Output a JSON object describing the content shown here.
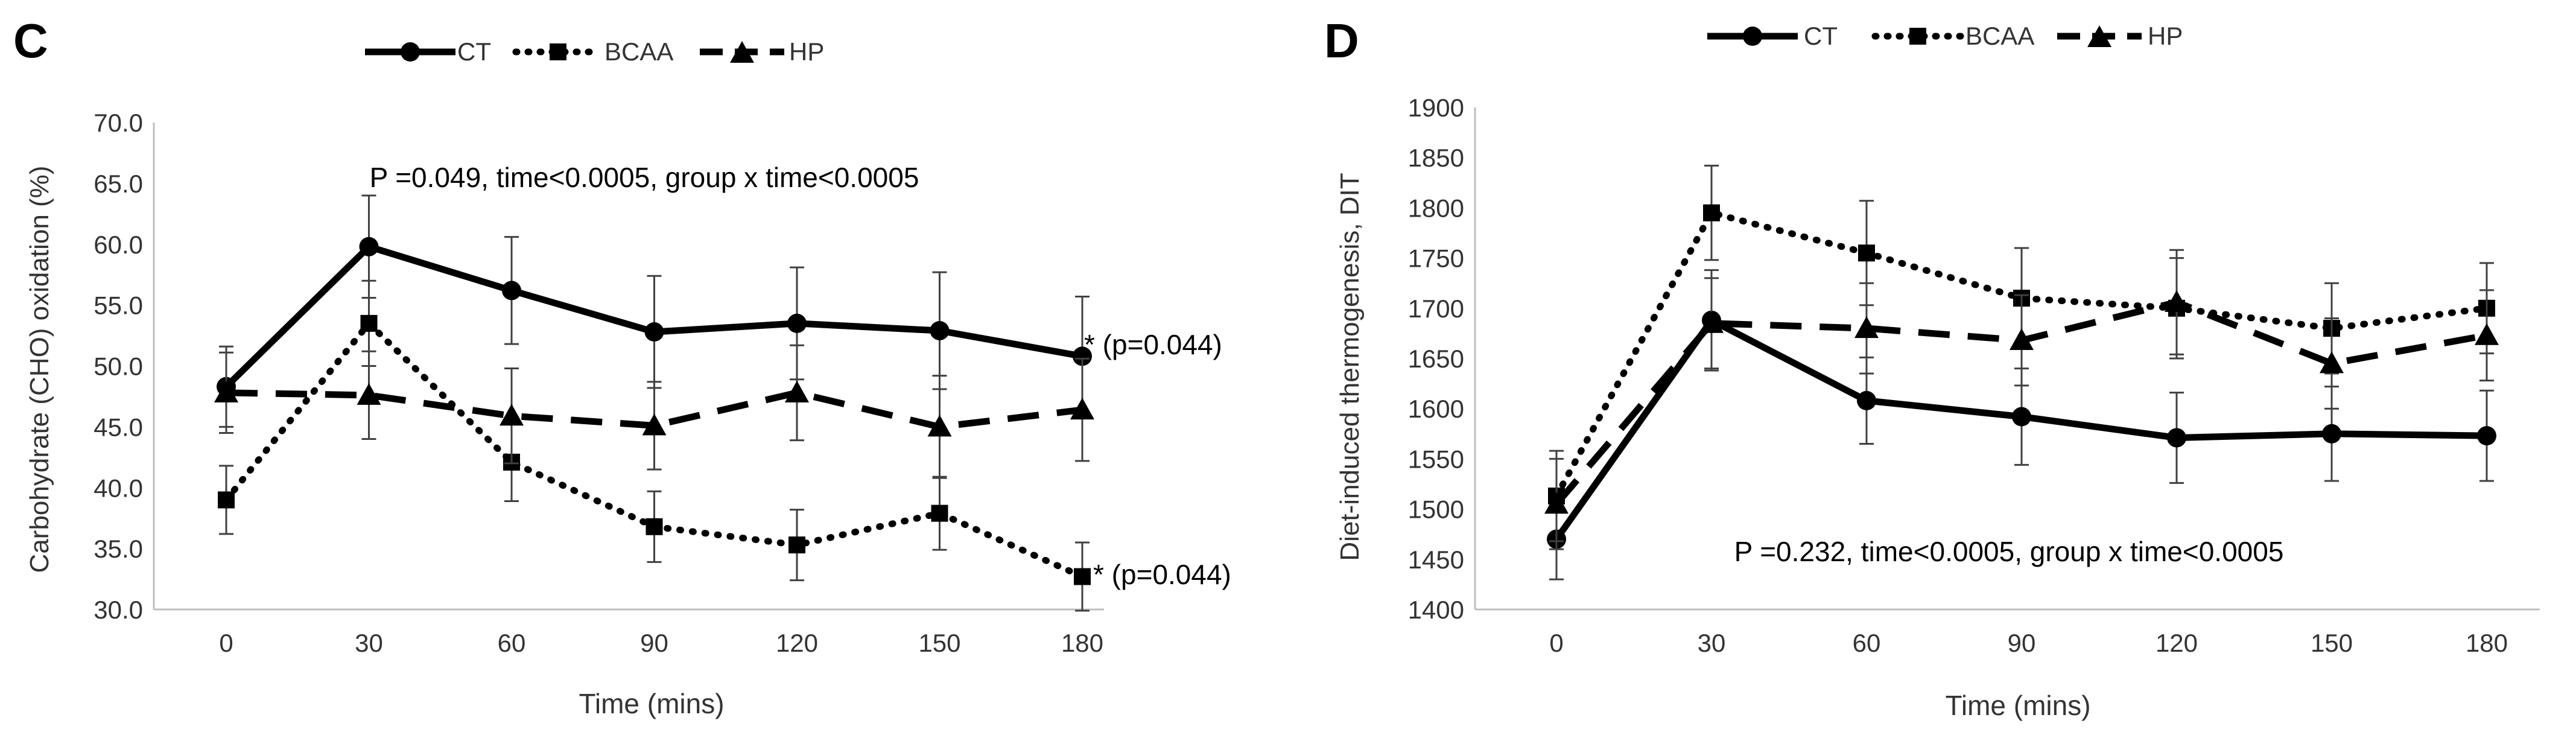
{
  "chart_data": [
    {
      "type": "line",
      "panel_label": "C",
      "title": "",
      "xlabel": "Time (mins)",
      "ylabel": "Carbohydrate (CHO) oxidation (%)",
      "categories": [
        "0",
        "30",
        "60",
        "90",
        "120",
        "150",
        "180"
      ],
      "ylim": [
        30.0,
        70.0
      ],
      "yticks": [
        "30.0",
        "35.0",
        "40.0",
        "45.0",
        "50.0",
        "55.0",
        "60.0",
        "65.0",
        "70.0"
      ],
      "ytick_values": [
        30,
        35,
        40,
        45,
        50,
        55,
        60,
        65,
        70
      ],
      "grid": false,
      "legend": "top",
      "legend_labels": [
        "CT",
        "BCAA",
        "HP"
      ],
      "series": [
        {
          "name": "CT",
          "style": "solid",
          "marker": "circle",
          "values": [
            48.3,
            59.8,
            56.2,
            52.8,
            53.5,
            52.9,
            50.8
          ],
          "errors": [
            3.3,
            4.2,
            4.4,
            4.6,
            4.6,
            4.8,
            4.9
          ]
        },
        {
          "name": "BCAA",
          "style": "dotted",
          "marker": "square",
          "values": [
            39.0,
            53.5,
            42.1,
            36.8,
            35.3,
            37.9,
            32.7
          ],
          "errors": [
            2.8,
            3.5,
            3.2,
            2.9,
            2.9,
            3.0,
            2.8
          ]
        },
        {
          "name": "HP",
          "style": "dashed",
          "marker": "triangle",
          "values": [
            47.8,
            47.6,
            45.9,
            45.1,
            47.8,
            45.0,
            46.4
          ],
          "errors": [
            3.3,
            3.6,
            3.9,
            3.6,
            3.9,
            4.2,
            4.2
          ]
        }
      ],
      "annotations": [
        {
          "id": "stats",
          "text": "P =0.049, time<0.0005, group x time<0.0005"
        },
        {
          "id": "ct-end",
          "text": "* (p=0.044)",
          "series": "CT",
          "at": "180"
        },
        {
          "id": "bcaa-end",
          "text": "* (p=0.044)",
          "series": "BCAA",
          "at": "180"
        }
      ]
    },
    {
      "type": "line",
      "panel_label": "D",
      "title": "",
      "xlabel": "Time (mins)",
      "ylabel": "Diet-induced thermogenesis, DIT",
      "categories": [
        "0",
        "30",
        "60",
        "90",
        "120",
        "150",
        "180"
      ],
      "ylim": [
        1400,
        1900
      ],
      "yticks": [
        "1400",
        "1450",
        "1500",
        "1550",
        "1600",
        "1650",
        "1700",
        "1750",
        "1800",
        "1850",
        "1900"
      ],
      "ytick_values": [
        1400,
        1450,
        1500,
        1550,
        1600,
        1650,
        1700,
        1750,
        1800,
        1850,
        1900
      ],
      "grid": false,
      "legend": "top",
      "legend_labels": [
        "CT",
        "BCAA",
        "HP"
      ],
      "series": [
        {
          "name": "CT",
          "style": "solid",
          "marker": "circle",
          "values": [
            1470,
            1688,
            1608,
            1592,
            1571,
            1575,
            1573
          ],
          "errors": [
            40,
            50,
            43,
            48,
            45,
            47,
            45
          ]
        },
        {
          "name": "BCAA",
          "style": "dotted",
          "marker": "square",
          "values": [
            1513,
            1795,
            1755,
            1710,
            1700,
            1680,
            1700
          ],
          "errors": [
            45,
            47,
            52,
            50,
            50,
            45,
            45
          ]
        },
        {
          "name": "HP",
          "style": "dashed",
          "marker": "triangle",
          "values": [
            1505,
            1685,
            1680,
            1668,
            1706,
            1645,
            1673
          ],
          "errors": [
            45,
            45,
            45,
            45,
            52,
            45,
            45
          ]
        }
      ],
      "annotations": [
        {
          "id": "stats",
          "text": "P =0.232, time<0.0005, group x time<0.0005"
        }
      ]
    }
  ]
}
